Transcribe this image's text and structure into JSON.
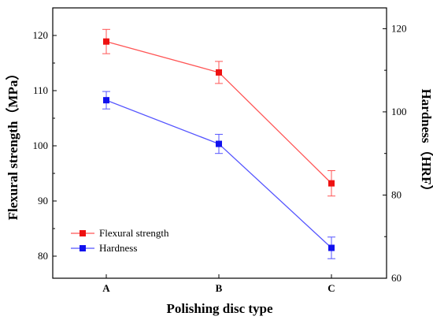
{
  "chart_data": {
    "type": "line",
    "categories": [
      "A",
      "B",
      "C"
    ],
    "xlabel": "Polishing disc type",
    "ylabel_left": "Flexural strength（MPa）",
    "ylabel_right": "Hardness（HRF）",
    "ylim_left": [
      76,
      125
    ],
    "yticks_left": [
      80,
      90,
      100,
      110,
      120
    ],
    "ylim_right": [
      60,
      125
    ],
    "yticks_right": [
      60,
      80,
      100,
      120
    ],
    "legend_position": "bottom-left",
    "series": [
      {
        "name": "Flexural strength",
        "axis": "left",
        "color": "#ff5555",
        "marker_color": "#ee1111",
        "values": [
          118.9,
          113.3,
          93.2
        ],
        "errors": [
          2.2,
          2.0,
          2.3
        ]
      },
      {
        "name": "Hardness",
        "axis": "right",
        "color": "#5555ff",
        "marker_color": "#1111ee",
        "values": [
          102.8,
          92.3,
          67.3
        ],
        "errors": [
          2.1,
          2.3,
          2.6
        ]
      }
    ]
  }
}
